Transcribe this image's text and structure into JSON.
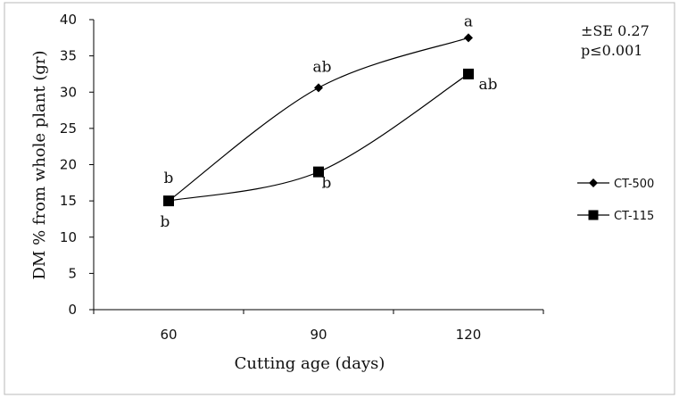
{
  "chart_data": {
    "type": "line",
    "title": "",
    "xlabel": "Cutting age (days)",
    "ylabel": "DM % from whole plant (gr)",
    "categories": [
      "60",
      "90",
      "120"
    ],
    "ylim": [
      0,
      40
    ],
    "yticks": [
      "0",
      "5",
      "10",
      "15",
      "20",
      "25",
      "30",
      "35",
      "40"
    ],
    "grid": false,
    "legend_position": "right",
    "series": [
      {
        "name": "CT-500",
        "marker": "diamond",
        "color": "#000000",
        "values": [
          15.0,
          30.6,
          37.5
        ],
        "labels": [
          "b",
          "ab",
          "a"
        ]
      },
      {
        "name": "CT-115",
        "marker": "square",
        "color": "#000000",
        "values": [
          15.0,
          19.0,
          32.5
        ],
        "labels": [
          "b",
          "b",
          "ab"
        ]
      }
    ],
    "annotations": [
      "±SE 0.27",
      "p≤0.001"
    ]
  }
}
